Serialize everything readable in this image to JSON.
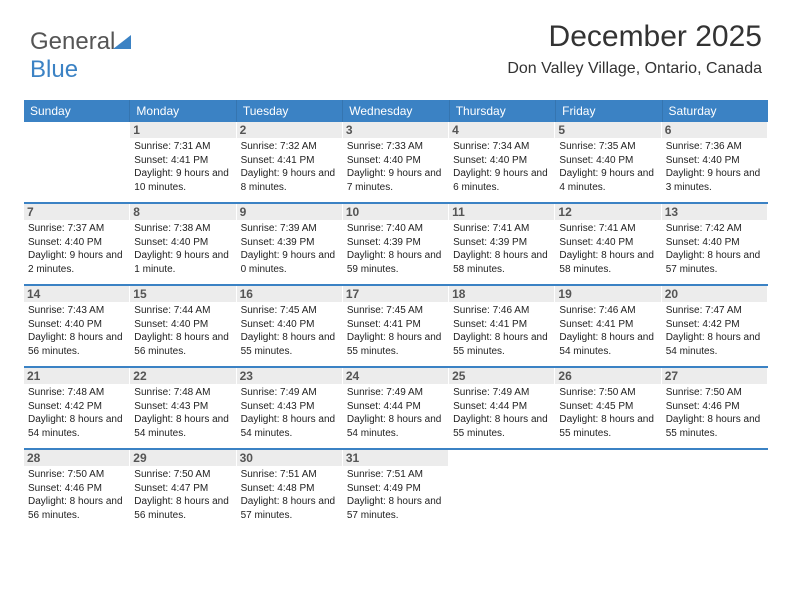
{
  "logo": {
    "text_gray": "General",
    "text_blue": "Blue"
  },
  "header": {
    "month_title": "December 2025",
    "location": "Don Valley Village, Ontario, Canada"
  },
  "colors": {
    "header_bg": "#3b82c4",
    "header_text": "#ffffff",
    "daynum_bg": "#ececec",
    "daynum_text": "#555555",
    "body_text": "#222222",
    "separator": "#3b82c4",
    "page_bg": "#ffffff"
  },
  "typography": {
    "month_title_fontsize": 30,
    "location_fontsize": 16,
    "dow_fontsize": 12,
    "daynum_fontsize": 12,
    "info_fontsize": 10
  },
  "days_of_week": [
    "Sunday",
    "Monday",
    "Tuesday",
    "Wednesday",
    "Thursday",
    "Friday",
    "Saturday"
  ],
  "weeks": [
    [
      {
        "n": "",
        "sunrise": "",
        "sunset": "",
        "daylight": ""
      },
      {
        "n": "1",
        "sunrise": "Sunrise: 7:31 AM",
        "sunset": "Sunset: 4:41 PM",
        "daylight": "Daylight: 9 hours and 10 minutes."
      },
      {
        "n": "2",
        "sunrise": "Sunrise: 7:32 AM",
        "sunset": "Sunset: 4:41 PM",
        "daylight": "Daylight: 9 hours and 8 minutes."
      },
      {
        "n": "3",
        "sunrise": "Sunrise: 7:33 AM",
        "sunset": "Sunset: 4:40 PM",
        "daylight": "Daylight: 9 hours and 7 minutes."
      },
      {
        "n": "4",
        "sunrise": "Sunrise: 7:34 AM",
        "sunset": "Sunset: 4:40 PM",
        "daylight": "Daylight: 9 hours and 6 minutes."
      },
      {
        "n": "5",
        "sunrise": "Sunrise: 7:35 AM",
        "sunset": "Sunset: 4:40 PM",
        "daylight": "Daylight: 9 hours and 4 minutes."
      },
      {
        "n": "6",
        "sunrise": "Sunrise: 7:36 AM",
        "sunset": "Sunset: 4:40 PM",
        "daylight": "Daylight: 9 hours and 3 minutes."
      }
    ],
    [
      {
        "n": "7",
        "sunrise": "Sunrise: 7:37 AM",
        "sunset": "Sunset: 4:40 PM",
        "daylight": "Daylight: 9 hours and 2 minutes."
      },
      {
        "n": "8",
        "sunrise": "Sunrise: 7:38 AM",
        "sunset": "Sunset: 4:40 PM",
        "daylight": "Daylight: 9 hours and 1 minute."
      },
      {
        "n": "9",
        "sunrise": "Sunrise: 7:39 AM",
        "sunset": "Sunset: 4:39 PM",
        "daylight": "Daylight: 9 hours and 0 minutes."
      },
      {
        "n": "10",
        "sunrise": "Sunrise: 7:40 AM",
        "sunset": "Sunset: 4:39 PM",
        "daylight": "Daylight: 8 hours and 59 minutes."
      },
      {
        "n": "11",
        "sunrise": "Sunrise: 7:41 AM",
        "sunset": "Sunset: 4:39 PM",
        "daylight": "Daylight: 8 hours and 58 minutes."
      },
      {
        "n": "12",
        "sunrise": "Sunrise: 7:41 AM",
        "sunset": "Sunset: 4:40 PM",
        "daylight": "Daylight: 8 hours and 58 minutes."
      },
      {
        "n": "13",
        "sunrise": "Sunrise: 7:42 AM",
        "sunset": "Sunset: 4:40 PM",
        "daylight": "Daylight: 8 hours and 57 minutes."
      }
    ],
    [
      {
        "n": "14",
        "sunrise": "Sunrise: 7:43 AM",
        "sunset": "Sunset: 4:40 PM",
        "daylight": "Daylight: 8 hours and 56 minutes."
      },
      {
        "n": "15",
        "sunrise": "Sunrise: 7:44 AM",
        "sunset": "Sunset: 4:40 PM",
        "daylight": "Daylight: 8 hours and 56 minutes."
      },
      {
        "n": "16",
        "sunrise": "Sunrise: 7:45 AM",
        "sunset": "Sunset: 4:40 PM",
        "daylight": "Daylight: 8 hours and 55 minutes."
      },
      {
        "n": "17",
        "sunrise": "Sunrise: 7:45 AM",
        "sunset": "Sunset: 4:41 PM",
        "daylight": "Daylight: 8 hours and 55 minutes."
      },
      {
        "n": "18",
        "sunrise": "Sunrise: 7:46 AM",
        "sunset": "Sunset: 4:41 PM",
        "daylight": "Daylight: 8 hours and 55 minutes."
      },
      {
        "n": "19",
        "sunrise": "Sunrise: 7:46 AM",
        "sunset": "Sunset: 4:41 PM",
        "daylight": "Daylight: 8 hours and 54 minutes."
      },
      {
        "n": "20",
        "sunrise": "Sunrise: 7:47 AM",
        "sunset": "Sunset: 4:42 PM",
        "daylight": "Daylight: 8 hours and 54 minutes."
      }
    ],
    [
      {
        "n": "21",
        "sunrise": "Sunrise: 7:48 AM",
        "sunset": "Sunset: 4:42 PM",
        "daylight": "Daylight: 8 hours and 54 minutes."
      },
      {
        "n": "22",
        "sunrise": "Sunrise: 7:48 AM",
        "sunset": "Sunset: 4:43 PM",
        "daylight": "Daylight: 8 hours and 54 minutes."
      },
      {
        "n": "23",
        "sunrise": "Sunrise: 7:49 AM",
        "sunset": "Sunset: 4:43 PM",
        "daylight": "Daylight: 8 hours and 54 minutes."
      },
      {
        "n": "24",
        "sunrise": "Sunrise: 7:49 AM",
        "sunset": "Sunset: 4:44 PM",
        "daylight": "Daylight: 8 hours and 54 minutes."
      },
      {
        "n": "25",
        "sunrise": "Sunrise: 7:49 AM",
        "sunset": "Sunset: 4:44 PM",
        "daylight": "Daylight: 8 hours and 55 minutes."
      },
      {
        "n": "26",
        "sunrise": "Sunrise: 7:50 AM",
        "sunset": "Sunset: 4:45 PM",
        "daylight": "Daylight: 8 hours and 55 minutes."
      },
      {
        "n": "27",
        "sunrise": "Sunrise: 7:50 AM",
        "sunset": "Sunset: 4:46 PM",
        "daylight": "Daylight: 8 hours and 55 minutes."
      }
    ],
    [
      {
        "n": "28",
        "sunrise": "Sunrise: 7:50 AM",
        "sunset": "Sunset: 4:46 PM",
        "daylight": "Daylight: 8 hours and 56 minutes."
      },
      {
        "n": "29",
        "sunrise": "Sunrise: 7:50 AM",
        "sunset": "Sunset: 4:47 PM",
        "daylight": "Daylight: 8 hours and 56 minutes."
      },
      {
        "n": "30",
        "sunrise": "Sunrise: 7:51 AM",
        "sunset": "Sunset: 4:48 PM",
        "daylight": "Daylight: 8 hours and 57 minutes."
      },
      {
        "n": "31",
        "sunrise": "Sunrise: 7:51 AM",
        "sunset": "Sunset: 4:49 PM",
        "daylight": "Daylight: 8 hours and 57 minutes."
      },
      {
        "n": "",
        "sunrise": "",
        "sunset": "",
        "daylight": ""
      },
      {
        "n": "",
        "sunrise": "",
        "sunset": "",
        "daylight": ""
      },
      {
        "n": "",
        "sunrise": "",
        "sunset": "",
        "daylight": ""
      }
    ]
  ]
}
